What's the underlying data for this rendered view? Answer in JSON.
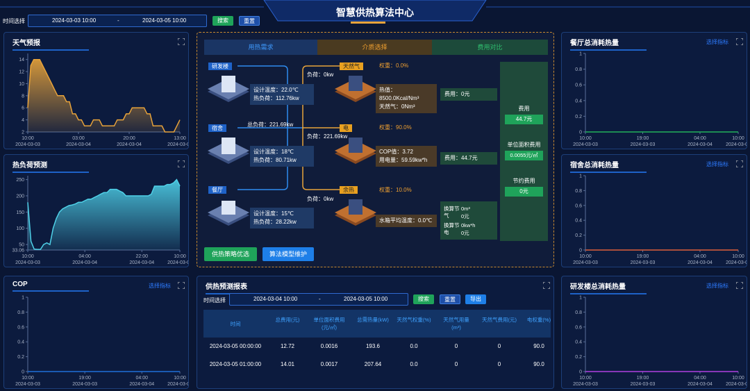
{
  "header": {
    "title": "智慧供热算法中心",
    "time_label": "时间选择",
    "start": "2024-03-03 10:00",
    "separator": "-",
    "end": "2024-03-05 10:00",
    "search": "搜索",
    "reset": "重置"
  },
  "weather": {
    "type": "line",
    "title": "天气预报",
    "color": "#e8a33a",
    "area": true,
    "values": [
      6,
      13,
      14,
      14,
      14,
      13,
      12,
      11,
      10,
      9,
      8,
      8,
      8,
      7,
      7,
      5,
      5,
      4,
      4,
      3,
      3,
      3,
      4,
      4,
      4,
      3,
      3,
      3,
      3,
      3,
      4,
      4,
      4,
      5,
      5,
      6,
      6,
      6,
      6,
      6,
      5,
      5,
      3,
      3,
      3,
      3,
      2,
      2,
      2,
      2,
      3,
      4
    ],
    "xlim": [
      0,
      51
    ],
    "ylim": [
      2,
      15
    ],
    "yticks": [
      2,
      4,
      6,
      8,
      10,
      12,
      14
    ],
    "xticks": [
      {
        "value": 0,
        "label": "10:00",
        "date": "2024-03-03"
      },
      {
        "value": 17,
        "label": "03:00",
        "date": "2024-03-04"
      },
      {
        "value": 34,
        "label": "20:00",
        "date": "2024-03-04"
      },
      {
        "value": 51,
        "label": "13:00",
        "date": "2024-03-05"
      }
    ]
  },
  "heat": {
    "type": "line",
    "title": "热负荷预测",
    "color": "#4fd1e8",
    "area": true,
    "values": [
      180,
      60,
      36,
      35,
      35,
      50,
      55,
      50,
      100,
      130,
      150,
      160,
      165,
      170,
      172,
      175,
      180,
      180,
      185,
      190,
      190,
      195,
      200,
      205,
      210,
      210,
      220,
      220,
      220,
      215,
      210,
      200,
      200,
      200,
      200,
      200,
      200,
      200,
      200,
      205,
      230,
      230,
      230,
      230,
      235,
      235,
      240,
      250,
      230
    ],
    "xlim": [
      0,
      48
    ],
    "ylim": [
      33.06,
      262
    ],
    "yticks": [
      33.06,
      50,
      100,
      150,
      200,
      250
    ],
    "xticks": [
      {
        "value": 0,
        "label": "10:00",
        "date": "2024-03-03"
      },
      {
        "value": 18,
        "label": "04:00",
        "date": "2024-03-04"
      },
      {
        "value": 36,
        "label": "22:00",
        "date": "2024-03-04"
      },
      {
        "value": 48,
        "label": "10:00",
        "date": "2024-03-05"
      }
    ]
  },
  "cop": {
    "type": "line",
    "title": "COP",
    "link": "选择指标",
    "color": "#1e6fd9",
    "values": [
      0,
      0,
      0,
      0,
      0,
      0,
      0,
      0,
      0,
      0,
      0,
      0,
      0,
      0,
      0,
      0,
      0,
      0,
      0,
      0,
      0,
      0,
      0,
      0,
      0
    ],
    "xlim": [
      0,
      24
    ],
    "ylim": [
      0,
      1
    ],
    "yticks": [
      0,
      0.2,
      0.4,
      0.6,
      0.8,
      1
    ],
    "xticks": [
      {
        "value": 0,
        "label": "10:00",
        "date": "2024-03-03"
      },
      {
        "value": 9,
        "label": "19:00",
        "date": "2024-03-03"
      },
      {
        "value": 18,
        "label": "04:00",
        "date": "2024-03-04"
      },
      {
        "value": 24,
        "label": "10:00",
        "date": "2024-03-04"
      }
    ]
  },
  "canteen": {
    "type": "line",
    "title": "餐厅总消耗热量",
    "link": "选择指标",
    "color": "#21b25a",
    "values": [
      0,
      0,
      0,
      0,
      0,
      0,
      0,
      0,
      0,
      0,
      0,
      0,
      0,
      0,
      0,
      0,
      0,
      0,
      0,
      0,
      0,
      0,
      0,
      0,
      0
    ],
    "xlim": [
      0,
      24
    ],
    "ylim": [
      0,
      1
    ],
    "yticks": [
      0,
      0.2,
      0.4,
      0.6,
      0.8,
      1
    ],
    "xticks": [
      {
        "value": 0,
        "label": "10:00",
        "date": "2024-03-03"
      },
      {
        "value": 9,
        "label": "19:00",
        "date": "2024-03-03"
      },
      {
        "value": 18,
        "label": "04:00",
        "date": "2024-03-04"
      },
      {
        "value": 24,
        "label": "10:00",
        "date": "2024-03-04"
      }
    ]
  },
  "dorm": {
    "type": "line",
    "title": "宿舍总消耗热量",
    "link": "选择指标",
    "color": "#e0603a",
    "values": [
      0,
      0,
      0,
      0,
      0,
      0,
      0,
      0,
      0,
      0,
      0,
      0,
      0,
      0,
      0,
      0,
      0,
      0,
      0,
      0,
      0,
      0,
      0,
      0,
      0
    ],
    "xlim": [
      0,
      24
    ],
    "ylim": [
      0,
      1
    ],
    "yticks": [
      0,
      0.2,
      0.4,
      0.6,
      0.8,
      1
    ],
    "xticks": [
      {
        "value": 0,
        "label": "10:00",
        "date": "2024-03-03"
      },
      {
        "value": 9,
        "label": "19:00",
        "date": "2024-03-03"
      },
      {
        "value": 18,
        "label": "04:00",
        "date": "2024-03-04"
      },
      {
        "value": 24,
        "label": "10:00",
        "date": "2024-03-04"
      }
    ]
  },
  "rnd": {
    "type": "line",
    "title": "研发楼总消耗热量",
    "link": "选择指标",
    "color": "#b040e0",
    "values": [
      0,
      0,
      0,
      0,
      0,
      0,
      0,
      0,
      0,
      0,
      0,
      0,
      0,
      0,
      0,
      0,
      0,
      0,
      0,
      0,
      0,
      0,
      0,
      0,
      0
    ],
    "xlim": [
      0,
      24
    ],
    "ylim": [
      0,
      1
    ],
    "yticks": [
      0,
      0.2,
      0.4,
      0.6,
      0.8,
      1
    ],
    "xticks": [
      {
        "value": 0,
        "label": "10:00",
        "date": "2024-03-03"
      },
      {
        "value": 9,
        "label": "19:00",
        "date": "2024-03-03"
      },
      {
        "value": 18,
        "label": "04:00",
        "date": "2024-03-04"
      },
      {
        "value": 24,
        "label": "10:00",
        "date": "2024-03-04"
      }
    ]
  },
  "center": {
    "tabs": [
      "用热需求",
      "介质选择",
      "费用对比"
    ],
    "buildings": [
      {
        "name": "研发楼",
        "temp": "设计温度：22.0℃",
        "load": "热负荷：112.76kw"
      },
      {
        "name": "宿舍",
        "temp": "设计温度：18℃",
        "load": "热负荷：80.71kw"
      },
      {
        "name": "餐厅",
        "temp": "设计温度：15℃",
        "load": "热负荷：28.22kw"
      }
    ],
    "total_load": "总负荷：221.69kw",
    "media_loads": [
      "负荷：0kw",
      "负荷：221.69kw",
      "负荷：0kw"
    ],
    "media": [
      {
        "name": "天然气",
        "weight": "权重：0.0%",
        "info": [
          "热值：8500.0Kcal/Nm³",
          "天然气：0Nm³"
        ],
        "fee": "费用：0元"
      },
      {
        "name": "电",
        "weight": "权重：90.0%",
        "info": [
          "COP值：3.72",
          "用电量：59.59kw*h"
        ],
        "fee": "费用：44.7元"
      },
      {
        "name": "余热",
        "weight": "权重：10.0%",
        "info": [
          "水箱平均温度：0.0℃"
        ]
      }
    ],
    "conversion": [
      {
        "label": "换算节气",
        "amount": "0m³",
        "fee": "0元"
      },
      {
        "label": "换算节电",
        "amount": "0kw*h",
        "fee": "0元"
      }
    ],
    "summary": [
      {
        "label": "费用",
        "value": "44.7元"
      },
      {
        "label": "单位面积费用",
        "value": "0.0055元/㎡"
      },
      {
        "label": "节约费用",
        "value": "0元"
      }
    ],
    "buttons": [
      "供热策略优选",
      "算法模型维护"
    ]
  },
  "report": {
    "title": "供热预测报表",
    "time_label": "时间选择",
    "start": "2024-03-04 10:00",
    "separator": "-",
    "end": "2024-03-05 10:00",
    "search": "搜索",
    "reset": "重置",
    "export": "导出",
    "headers": [
      "时间",
      "总费用(元)",
      "单位面积费用(元/㎡)",
      "总需热量(kW)",
      "天然气权重(%)",
      "天然气用量(m³)",
      "天然气费用(元)",
      "电权重(%)"
    ],
    "rows": [
      [
        "2024-03-05 00:00:00",
        "12.72",
        "0.0016",
        "193.6",
        "0.0",
        "0",
        "0",
        "90.0"
      ],
      [
        "2024-03-05 01:00:00",
        "14.01",
        "0.0017",
        "207.64",
        "0.0",
        "0",
        "0",
        "90.0"
      ]
    ]
  }
}
